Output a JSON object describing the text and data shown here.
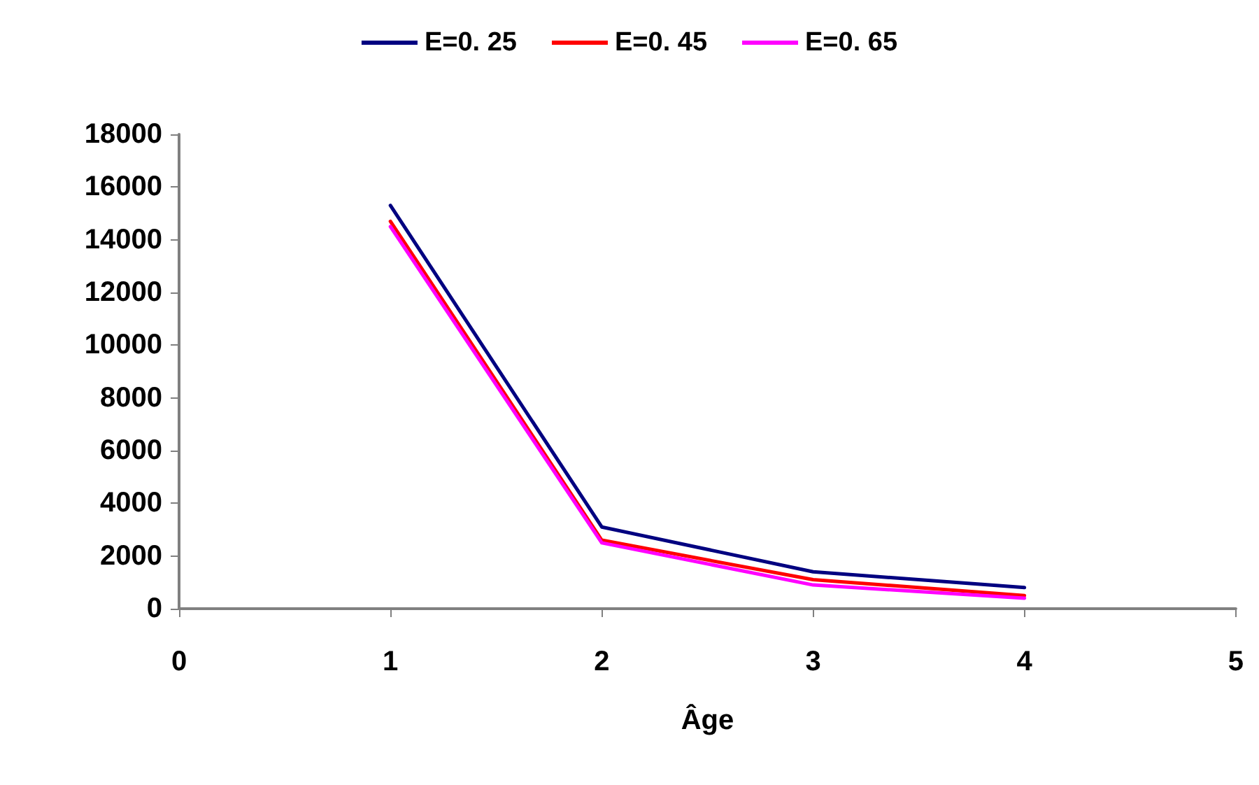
{
  "chart_data": {
    "type": "line",
    "xlabel": "Âge",
    "x": [
      1,
      2,
      3,
      4
    ],
    "xlim": [
      0,
      5
    ],
    "xticks": [
      0,
      1,
      2,
      3,
      4,
      5
    ],
    "ylim": [
      0,
      18000
    ],
    "yticks": [
      0,
      2000,
      4000,
      6000,
      8000,
      10000,
      12000,
      14000,
      16000,
      18000
    ],
    "grid": false,
    "legend": "top",
    "marker": "none",
    "line_style": "solid",
    "series": [
      {
        "name": "E=0. 25",
        "color": "#000080",
        "values": [
          15300,
          3100,
          1400,
          800
        ]
      },
      {
        "name": "E=0. 45",
        "color": "#ff0000",
        "values": [
          14700,
          2600,
          1100,
          500
        ]
      },
      {
        "name": "E=0. 65",
        "color": "#ff00ff",
        "values": [
          14500,
          2500,
          900,
          400
        ]
      }
    ]
  }
}
